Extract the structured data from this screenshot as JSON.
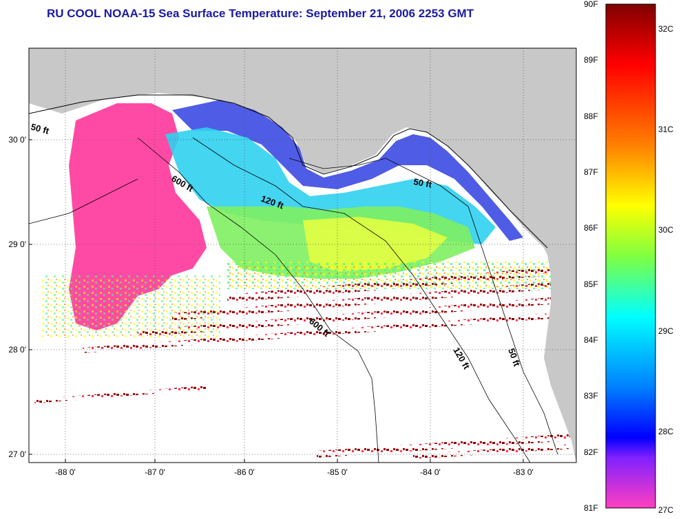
{
  "title": "RU COOL  NOAA-15  Sea Surface Temperature:  September 21, 2006 2253 GMT",
  "map": {
    "lon_ticks": [
      "-88 0'",
      "-87 0'",
      "-86 0'",
      "-85 0'",
      "-84 0'",
      "-83 0'"
    ],
    "lat_ticks": [
      "30 0'",
      "29 0'",
      "28 0'",
      "27 0'"
    ],
    "contour_labels": [
      "50 ft",
      "600 ft",
      "120 ft",
      "50 ft",
      "600 ft",
      "120 ft",
      "50 ft"
    ],
    "colors": {
      "land": "#c8c8c8",
      "ocean_nodata": "#ffffff",
      "cold": "#ff40c0",
      "warm": "#8b0000"
    }
  },
  "colorbar": {
    "fahrenheit_labels": [
      "90F",
      "89F",
      "88F",
      "87F",
      "86F",
      "85F",
      "84F",
      "83F",
      "82F",
      "81F"
    ],
    "celsius_labels": [
      "32C",
      "31C",
      "30C",
      "29C",
      "28C",
      "27C"
    ],
    "range_f": [
      81,
      90
    ],
    "range_c": [
      27,
      32
    ]
  }
}
